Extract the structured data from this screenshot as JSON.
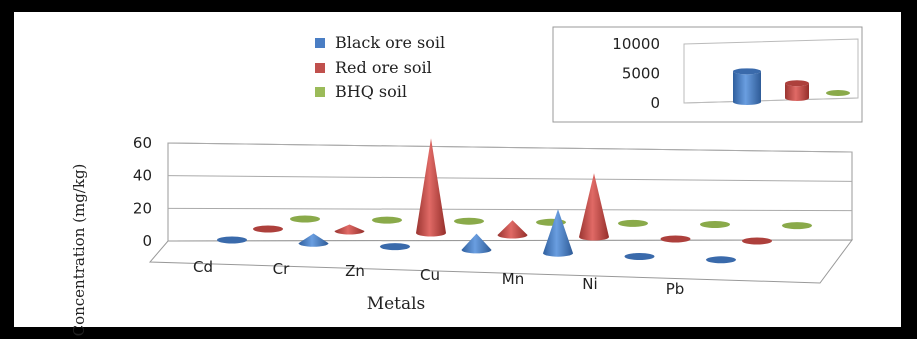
{
  "chart_data": [
    {
      "type": "bar",
      "subtype": "3d-cone",
      "title": "",
      "xlabel": "Metals",
      "ylabel": "Concentration (mg/kg)",
      "ylim": [
        0,
        60
      ],
      "yticks": [
        "0",
        "20",
        "40",
        "60"
      ],
      "categories": [
        "Cd",
        "Cr",
        "Zn",
        "Cu",
        "Mn",
        "Ni",
        "Pb"
      ],
      "series": [
        {
          "name": "Black ore soil",
          "color": "#4a7ec4",
          "values": [
            1,
            6,
            1,
            10,
            27,
            1,
            1
          ]
        },
        {
          "name": "Red ore soil",
          "color": "#c0504d",
          "values": [
            1,
            4,
            58,
            9,
            39,
            1,
            1
          ]
        },
        {
          "name": "BHQ soil",
          "color": "#9bbb59",
          "values": [
            1,
            1,
            1,
            1,
            1,
            1,
            1
          ]
        }
      ],
      "legend": "top-center",
      "grid": true
    },
    {
      "type": "bar",
      "subtype": "3d-cylinder-inset",
      "ylim": [
        0,
        10000
      ],
      "yticks": [
        "0",
        "5000",
        "10000"
      ],
      "series": [
        {
          "name": "Black ore soil",
          "color": "#4a7ec4",
          "values": [
            5200
          ]
        },
        {
          "name": "Red ore soil",
          "color": "#c0504d",
          "values": [
            2500
          ]
        },
        {
          "name": "BHQ soil",
          "color": "#9bbb59",
          "values": [
            200
          ]
        }
      ],
      "legend": "none",
      "grid": false
    }
  ]
}
